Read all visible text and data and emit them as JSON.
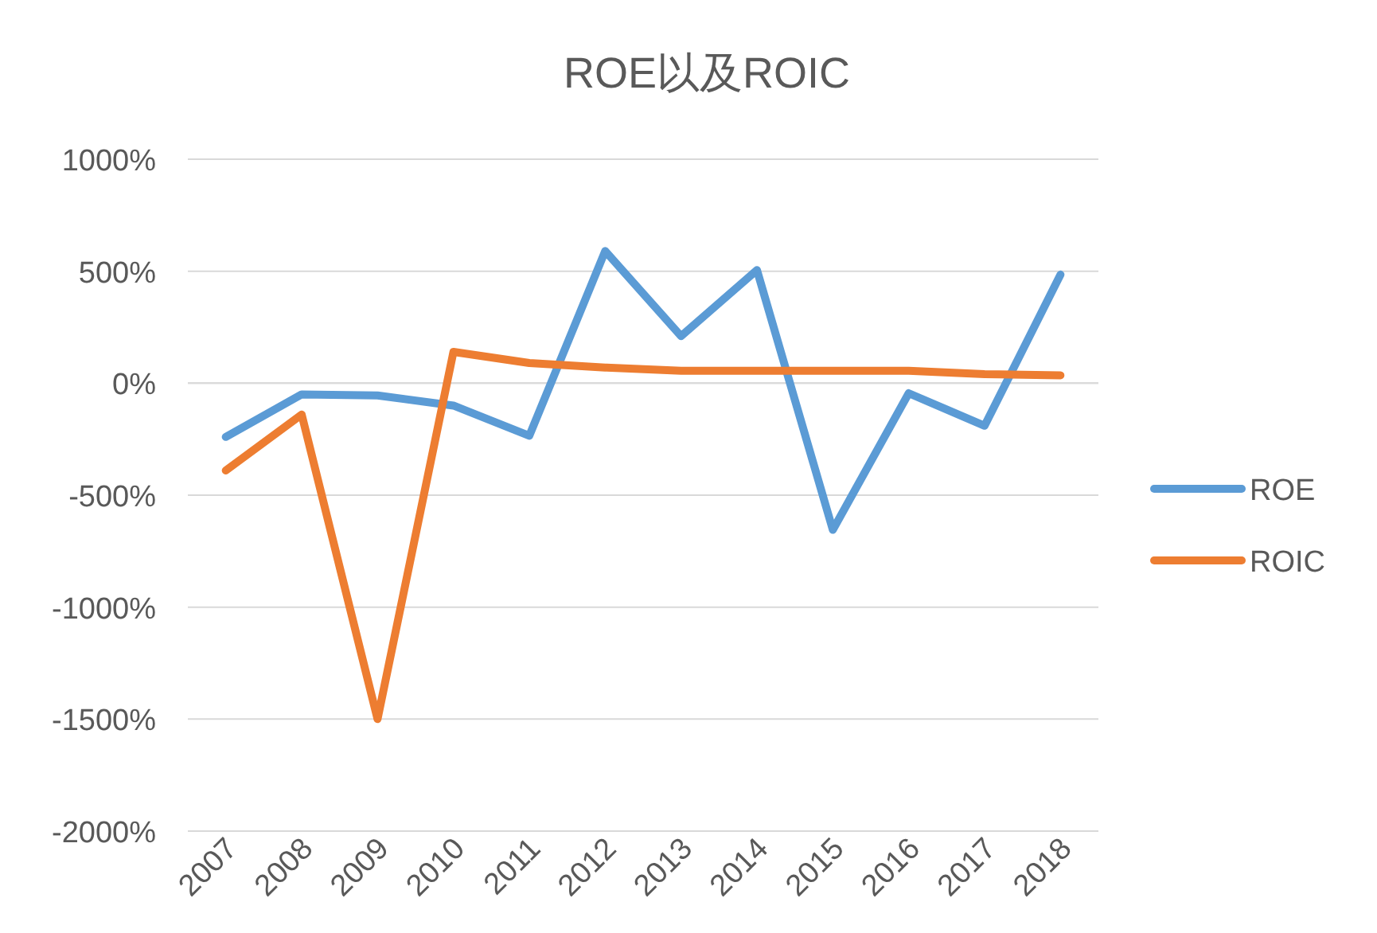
{
  "chart_data": {
    "type": "line",
    "title": "ROE以及ROIC",
    "categories": [
      "2007",
      "2008",
      "2009",
      "2010",
      "2011",
      "2012",
      "2013",
      "2014",
      "2015",
      "2016",
      "2017",
      "2018"
    ],
    "series": [
      {
        "name": "ROE",
        "color": "#5b9bd5",
        "values": [
          -240,
          -50,
          -55,
          -100,
          -235,
          590,
          210,
          505,
          -655,
          -45,
          -190,
          485
        ]
      },
      {
        "name": "ROIC",
        "color": "#ed7d31",
        "values": [
          -390,
          -140,
          -1500,
          140,
          90,
          70,
          55,
          55,
          55,
          55,
          40,
          35
        ]
      }
    ],
    "ylim": [
      -2000,
      1000
    ],
    "yticks": [
      {
        "value": 1000,
        "label": "1000%"
      },
      {
        "value": 500,
        "label": "500%"
      },
      {
        "value": 0,
        "label": "0%"
      },
      {
        "value": -500,
        "label": "-500%"
      },
      {
        "value": -1000,
        "label": "-1000%"
      },
      {
        "value": -1500,
        "label": "-1500%"
      },
      {
        "value": -2000,
        "label": "-2000%"
      }
    ],
    "grid": "y",
    "legend": "right"
  }
}
